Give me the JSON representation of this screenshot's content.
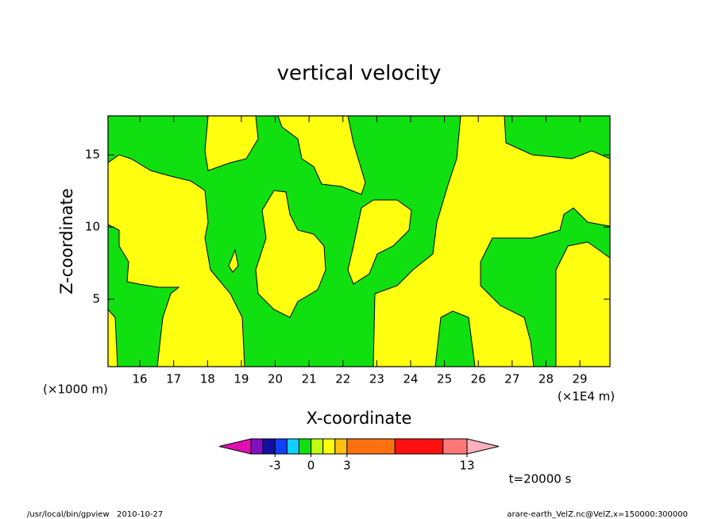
{
  "chart_data": {
    "type": "contour",
    "title": "vertical velocity",
    "xlabel": "X-coordinate",
    "ylabel": "Z-coordinate",
    "x_unit_label": "(×1E4 m)",
    "y_unit_label": "(×1000 m)",
    "xlim": [
      15.06,
      29.89
    ],
    "ylim": [
      0.33,
      17.7
    ],
    "xticks": [
      16,
      17,
      18,
      19,
      20,
      21,
      22,
      23,
      24,
      25,
      26,
      27,
      28,
      29
    ],
    "yticks": [
      5,
      10,
      15
    ],
    "colorbar": {
      "levels": [
        -5,
        -4,
        -3,
        -2,
        -1,
        0,
        1,
        2,
        3,
        7,
        11,
        13
      ],
      "colors": [
        "#e010b0",
        "#8010c0",
        "#1010a0",
        "#1040ff",
        "#10d0ff",
        "#10e010",
        "#c0ff10",
        "#ffff10",
        "#ffc010",
        "#ff7010",
        "#ff1010",
        "#ff7878",
        "#ffb0c0"
      ],
      "ticks": [
        -3,
        0,
        3,
        13
      ]
    },
    "time_label": "t=20000 s",
    "footer_left": "/usr/local/bin/gpview   2010-10-27",
    "footer_right": "arare-earth_VelZ.nc@VelZ,x=150000:300000"
  }
}
